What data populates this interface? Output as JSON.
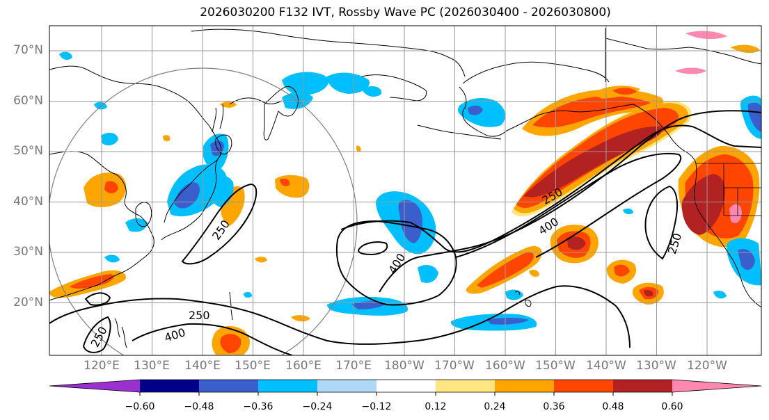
{
  "title": "2026030200 F132 IVT, Rossby Wave PC (2026030400 - 2026030800)",
  "latitude_labels": [
    "70°N",
    "60°N",
    "50°N",
    "40°N",
    "30°N",
    "20°N"
  ],
  "longitude_labels": [
    "120°E",
    "130°E",
    "140°E",
    "150°E",
    "160°E",
    "170°E",
    "180°W",
    "170°W",
    "160°W",
    "150°W",
    "140°W",
    "130°W",
    "120°W"
  ],
  "contour_labels": [
    "250",
    "400",
    "400",
    "250",
    "250",
    "250",
    "400",
    "250"
  ],
  "colorbar": {
    "tick_labels": [
      "−0.60",
      "−0.48",
      "−0.36",
      "−0.24",
      "−0.12",
      "0.12",
      "0.24",
      "0.36",
      "0.48",
      "0.60"
    ],
    "colors": [
      "#9b30d0",
      "#00008b",
      "#3a5fcd",
      "#00bfff",
      "#add8f7",
      "#ffffff",
      "#ffe680",
      "#ffa500",
      "#ff4500",
      "#b22222",
      "#ff88b0"
    ]
  },
  "colors": {
    "orange": "#ffa500",
    "red_orange": "#ff4500",
    "dark_red": "#b22222",
    "pink": "#ff88b0",
    "light_yellow": "#ffe680",
    "deep_sky_blue": "#00bfff",
    "royal_blue": "#3a5fcd",
    "light_blue": "#add8f7",
    "gridline": "#999999",
    "axis_label": "#777777"
  }
}
